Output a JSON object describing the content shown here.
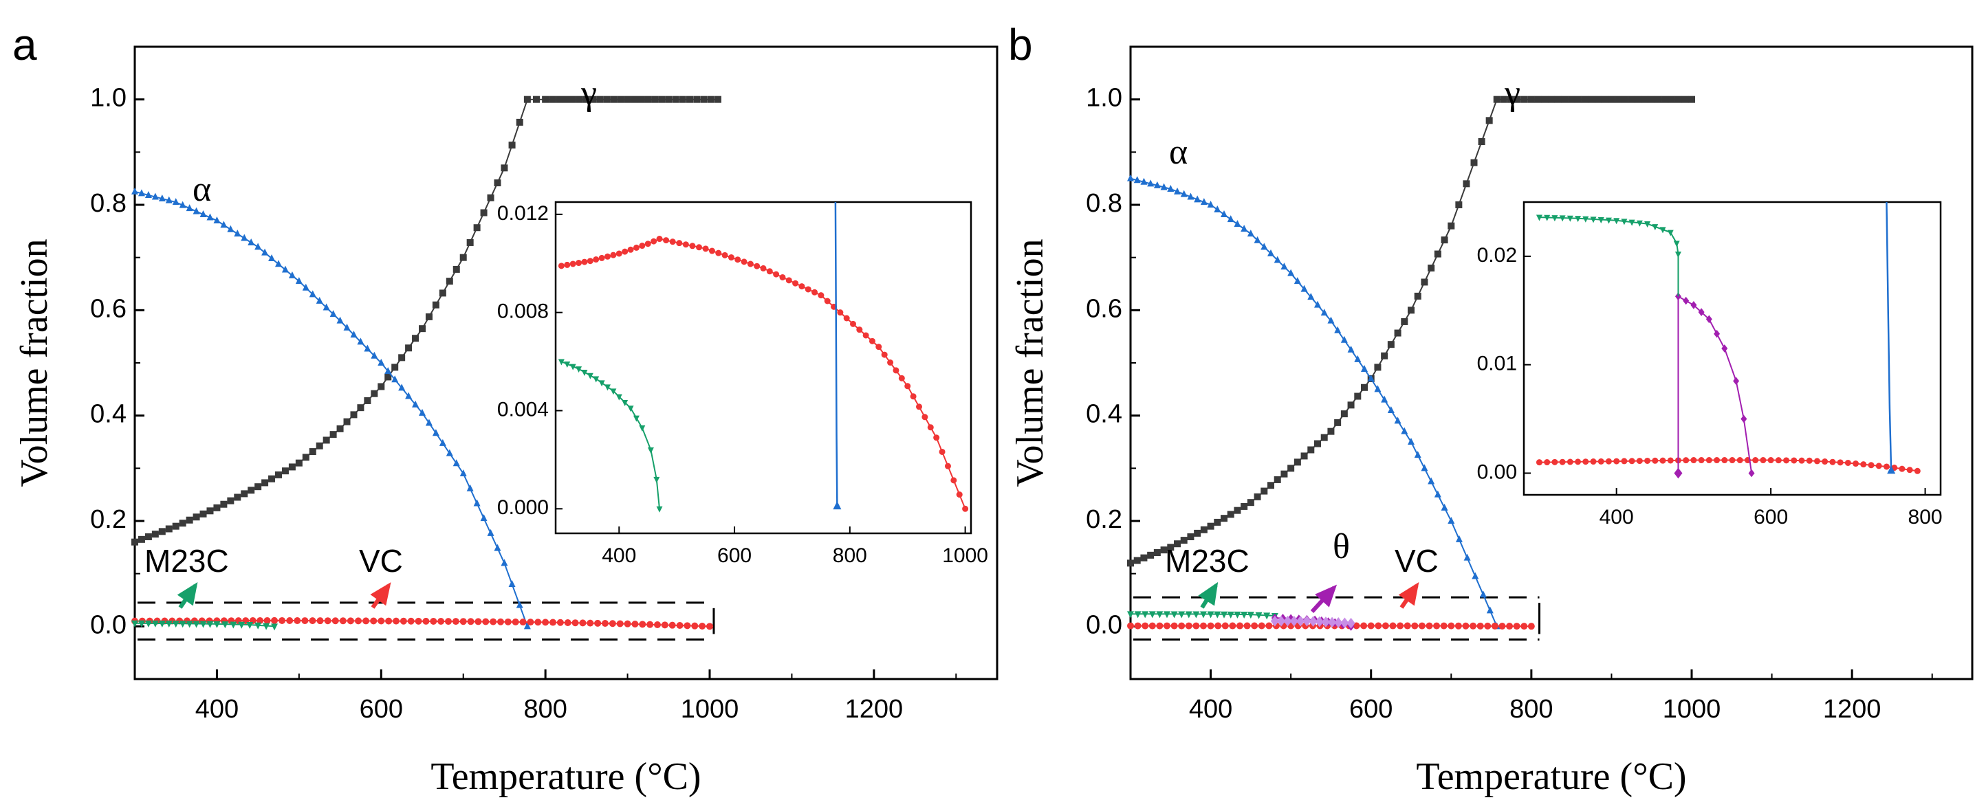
{
  "figure": {
    "xlabel": "Temperature (°C)",
    "ylabel": "Volume fraction"
  },
  "colors": {
    "gamma": "#3a3a3a",
    "alpha": "#1f6fcf",
    "vc": "#f03535",
    "m23c": "#16a06a",
    "theta": "#a21fb0",
    "theta_light": "#c88ee6"
  },
  "chart_data": [
    {
      "panel": "a",
      "type": "line",
      "xlim": [
        300,
        1350
      ],
      "ylim": [
        -0.1,
        1.1
      ],
      "xticks": [
        400,
        600,
        800,
        1000,
        1200
      ],
      "yticks": [
        0.0,
        0.2,
        0.4,
        0.6,
        0.8,
        1.0
      ],
      "series": [
        {
          "name": "γ",
          "key": "gamma",
          "x": [
            300,
            350,
            400,
            450,
            500,
            550,
            600,
            650,
            700,
            750,
            778,
            800,
            850,
            900,
            950,
            1010
          ],
          "y": [
            0.16,
            0.19,
            0.225,
            0.265,
            0.31,
            0.375,
            0.455,
            0.565,
            0.7,
            0.87,
            1.0,
            1.0,
            1.0,
            1.0,
            1.0,
            1.0
          ]
        },
        {
          "name": "α",
          "key": "alpha",
          "x": [
            300,
            350,
            400,
            450,
            500,
            550,
            600,
            650,
            700,
            750,
            778
          ],
          "y": [
            0.825,
            0.805,
            0.77,
            0.72,
            0.655,
            0.58,
            0.5,
            0.405,
            0.29,
            0.12,
            0.0
          ]
        },
        {
          "name": "VC",
          "key": "vc",
          "x": [
            300,
            400,
            470,
            600,
            700,
            800,
            900,
            1000
          ],
          "y": [
            0.01,
            0.0105,
            0.011,
            0.0102,
            0.0093,
            0.0078,
            0.0048,
            0.0
          ]
        },
        {
          "name": "M23C",
          "key": "m23c",
          "x": [
            300,
            350,
            400,
            440,
            470
          ],
          "y": [
            0.006,
            0.0055,
            0.0045,
            0.003,
            0.0
          ]
        }
      ],
      "annotations": {
        "gamma": "γ",
        "alpha": "α",
        "m23c": "M23C",
        "vc": "VC"
      },
      "zoom_box": {
        "xrange": [
          300,
          1005
        ],
        "yrange": [
          -0.025,
          0.045
        ]
      },
      "inset": {
        "xlim": [
          290,
          1010
        ],
        "ylim": [
          -0.001,
          0.0125
        ],
        "xticks": [
          400,
          600,
          800,
          1000
        ],
        "yticks": [
          0.0,
          0.004,
          0.008,
          0.012
        ],
        "ytick_labels": [
          "0.000",
          "0.004",
          "0.008",
          "0.012"
        ],
        "series": [
          {
            "name": "VC",
            "key": "vc",
            "x": [
              300,
              350,
              400,
              450,
              470,
              550,
              650,
              750,
              850,
              900,
              950,
              1000
            ],
            "y": [
              0.0099,
              0.0101,
              0.0104,
              0.0108,
              0.011,
              0.0106,
              0.0098,
              0.0087,
              0.0066,
              0.005,
              0.0029,
              0.0
            ]
          },
          {
            "name": "M23C",
            "key": "m23c",
            "x": [
              300,
              330,
              360,
              390,
              420,
              440,
              455,
              465,
              470
            ],
            "y": [
              0.006,
              0.0057,
              0.0053,
              0.0048,
              0.0041,
              0.0033,
              0.0024,
              0.0012,
              0.0
            ]
          },
          {
            "name": "α",
            "key": "alpha",
            "x": [
              775,
              776,
              777,
              778
            ],
            "y": [
              0.0125,
              0.008,
              0.003,
              0.0
            ]
          }
        ]
      }
    },
    {
      "panel": "b",
      "type": "line",
      "xlim": [
        300,
        1350
      ],
      "ylim": [
        -0.1,
        1.1
      ],
      "xticks": [
        400,
        600,
        800,
        1000,
        1200
      ],
      "yticks": [
        0.0,
        0.2,
        0.4,
        0.6,
        0.8,
        1.0
      ],
      "series": [
        {
          "name": "γ",
          "key": "gamma",
          "x": [
            300,
            350,
            400,
            450,
            500,
            550,
            600,
            650,
            700,
            757,
            800,
            850,
            900,
            950,
            1000
          ],
          "y": [
            0.12,
            0.15,
            0.19,
            0.235,
            0.3,
            0.37,
            0.47,
            0.6,
            0.76,
            1.0,
            1.0,
            1.0,
            1.0,
            1.0,
            1.0
          ]
        },
        {
          "name": "α",
          "key": "alpha",
          "x": [
            300,
            350,
            400,
            450,
            500,
            550,
            600,
            650,
            700,
            740,
            757
          ],
          "y": [
            0.85,
            0.83,
            0.8,
            0.745,
            0.67,
            0.58,
            0.47,
            0.35,
            0.2,
            0.06,
            0.0
          ]
        },
        {
          "name": "VC",
          "key": "vc",
          "x": [
            300,
            400,
            500,
            600,
            700,
            800
          ],
          "y": [
            0.001,
            0.001,
            0.0011,
            0.0011,
            0.0009,
            0.0002
          ]
        },
        {
          "name": "M23C",
          "key": "m23c",
          "x": [
            300,
            400,
            450,
            480
          ],
          "y": [
            0.0235,
            0.0232,
            0.0225,
            0.02
          ]
        },
        {
          "name": "θ",
          "key": "theta",
          "x": [
            480,
            500,
            530,
            555,
            575
          ],
          "y": [
            0.016,
            0.0148,
            0.012,
            0.007,
            0.0
          ]
        }
      ],
      "annotations": {
        "gamma": "γ",
        "alpha": "α",
        "m23c": "M23C",
        "theta": "θ",
        "vc": "VC"
      },
      "zoom_box": {
        "xrange": [
          300,
          810
        ],
        "yrange": [
          -0.025,
          0.055
        ]
      },
      "inset": {
        "xlim": [
          280,
          820
        ],
        "ylim": [
          -0.002,
          0.025
        ],
        "xticks": [
          400,
          600,
          800
        ],
        "yticks": [
          0.0,
          0.01,
          0.02
        ],
        "ytick_labels": [
          "0.00",
          "0.01",
          "0.02"
        ],
        "series": [
          {
            "name": "VC",
            "key": "vc",
            "x": [
              300,
              350,
              400,
              450,
              500,
              550,
              600,
              650,
              700,
              750,
              790
            ],
            "y": [
              0.001,
              0.00105,
              0.0011,
              0.00115,
              0.0012,
              0.0012,
              0.0012,
              0.00115,
              0.00095,
              0.0006,
              0.0002
            ]
          },
          {
            "name": "M23C",
            "key": "m23c",
            "x": [
              300,
              350,
              400,
              440,
              470,
              478,
              480
            ],
            "y": [
              0.0236,
              0.0235,
              0.0233,
              0.023,
              0.0222,
              0.0212,
              0.0202
            ]
          },
          {
            "name": "θ",
            "key": "theta",
            "x": [
              480,
              500,
              520,
              540,
              555,
              565,
              575
            ],
            "y": [
              0.0163,
              0.0155,
              0.0142,
              0.0115,
              0.0085,
              0.005,
              0.0
            ]
          },
          {
            "name": "α",
            "key": "alpha",
            "x": [
              750,
              752,
              754,
              756
            ],
            "y": [
              0.025,
              0.015,
              0.006,
              0.0
            ]
          }
        ]
      }
    }
  ]
}
